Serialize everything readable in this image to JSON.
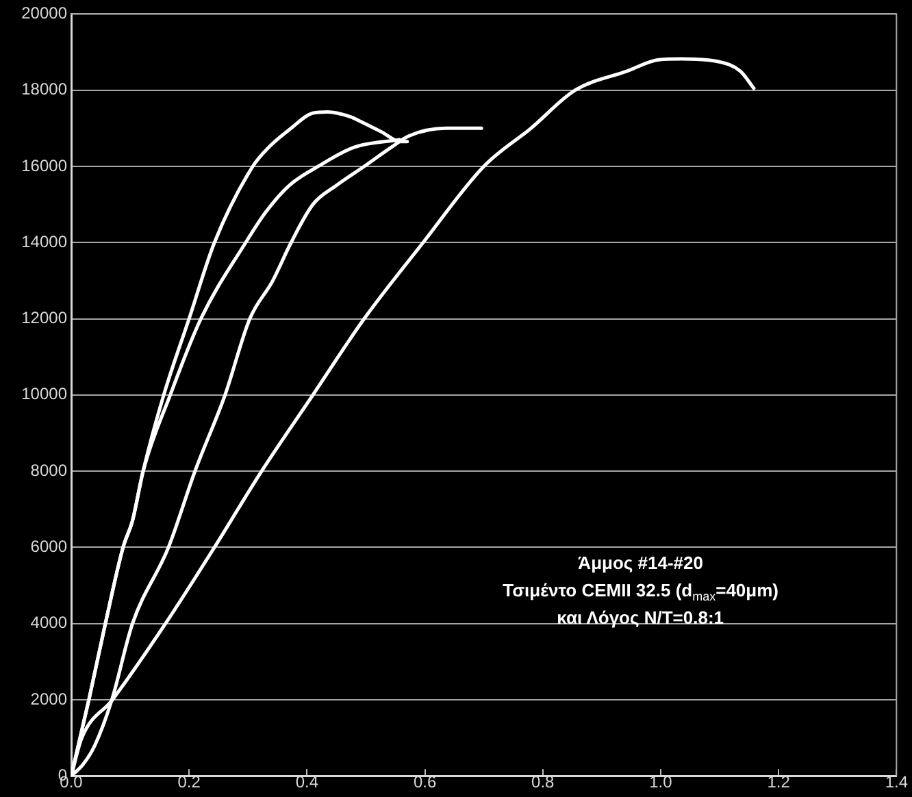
{
  "chart_data": {
    "type": "line",
    "series": [
      {
        "color": "#ffffff",
        "x": [
          0,
          0.03,
          0.058,
          0.088,
          0.104,
          0.122,
          0.157,
          0.2,
          0.243,
          0.308,
          0.335,
          0.373,
          0.41,
          0.435,
          0.474,
          0.488,
          0.527,
          0.558,
          0.57
        ],
        "values": [
          0,
          2000,
          4000,
          6000,
          6700,
          8000,
          10000,
          12000,
          14000,
          16000,
          16500,
          17000,
          17400,
          17430,
          17300,
          17200,
          16900,
          16650,
          16650
        ]
      },
      {
        "color": "#ffffff",
        "x": [
          0,
          0.03,
          0.058,
          0.088,
          0.104,
          0.122,
          0.168,
          0.22,
          0.296,
          0.33,
          0.37,
          0.419,
          0.48,
          0.557
        ],
        "values": [
          0,
          2000,
          4000,
          6000,
          6700,
          8000,
          10000,
          12000,
          14000,
          14800,
          15500,
          16000,
          16500,
          16700
        ]
      },
      {
        "color": "#ffffff",
        "x": [
          0,
          0.02,
          0.04,
          0.069,
          0.104,
          0.165,
          0.21,
          0.261,
          0.303,
          0.342,
          0.373,
          0.41,
          0.45,
          0.497,
          0.543,
          0.573,
          0.636,
          0.696
        ],
        "values": [
          0,
          300,
          800,
          2000,
          4000,
          6000,
          8000,
          10000,
          12000,
          13000,
          14000,
          15000,
          15500,
          16000,
          16500,
          16800,
          17000,
          17000
        ]
      },
      {
        "color": "#ffffff",
        "x": [
          0,
          0.018,
          0.07,
          0.16,
          0.243,
          0.323,
          0.41,
          0.497,
          0.597,
          0.7,
          0.78,
          0.855,
          0.943,
          0.997,
          1.036,
          1.098,
          1.135,
          1.158
        ],
        "values": [
          0,
          1000,
          2000,
          4000,
          6000,
          8000,
          10000,
          12000,
          14000,
          16000,
          17000,
          18000,
          18500,
          18800,
          18820,
          18750,
          18500,
          18050
        ]
      }
    ],
    "xlim": [
      0,
      1.4
    ],
    "xticks": [
      {
        "value": 0,
        "label": "0.0"
      },
      0.2,
      0.4,
      0.6,
      0.8,
      {
        "value": 1,
        "label": "1.0"
      },
      1.2,
      1.4
    ],
    "ylim": [
      0,
      20000
    ],
    "yticks": [
      0,
      2000,
      4000,
      6000,
      8000,
      10000,
      12000,
      14000,
      16000,
      18000,
      20000
    ],
    "grid": "y",
    "legend": false,
    "marker": "none",
    "line_style": "solid",
    "annotations": [
      "Άμμος #14-#20",
      "Τσιμέντο CEMII 32.5 (d$_{max}$=40μm)",
      "και Λόγος Ν/Τ=0.8:1"
    ]
  }
}
